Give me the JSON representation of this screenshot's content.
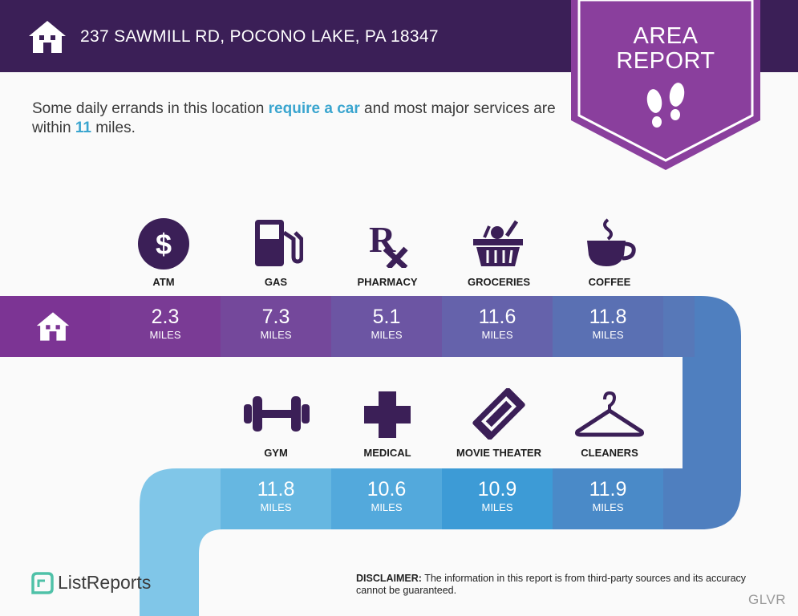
{
  "header": {
    "address": "237 SAWMILL RD, POCONO LAKE, PA 18347",
    "badge_line1": "AREA",
    "badge_line2": "REPORT"
  },
  "intro": {
    "part1": "Some daily errands in this location ",
    "highlight1": "require a car",
    "part2": " and most major services are within ",
    "highlight2": "11",
    "part3": " miles."
  },
  "row1": [
    {
      "label": "ATM",
      "value": "2.3",
      "unit": "MILES",
      "icon": "dollar-icon",
      "color": "#7a3b95"
    },
    {
      "label": "GAS",
      "value": "7.3",
      "unit": "MILES",
      "icon": "gas-pump-icon",
      "color": "#74489b"
    },
    {
      "label": "PHARMACY",
      "value": "5.1",
      "unit": "MILES",
      "icon": "rx-icon",
      "color": "#6c55a3"
    },
    {
      "label": "GROCERIES",
      "value": "11.6",
      "unit": "MILES",
      "icon": "grocery-basket-icon",
      "color": "#6562ab"
    },
    {
      "label": "COFFEE",
      "value": "11.8",
      "unit": "MILES",
      "icon": "coffee-cup-icon",
      "color": "#5a70b3"
    }
  ],
  "row2": [
    {
      "label": "GYM",
      "value": "11.8",
      "unit": "MILES",
      "icon": "dumbbell-icon",
      "color": "#66b7e1"
    },
    {
      "label": "MEDICAL",
      "value": "10.6",
      "unit": "MILES",
      "icon": "medical-cross-icon",
      "color": "#53a9dc"
    },
    {
      "label": "MOVIE THEATER",
      "value": "10.9",
      "unit": "MILES",
      "icon": "ticket-icon",
      "color": "#3d9bd6"
    },
    {
      "label": "CLEANERS",
      "value": "11.9",
      "unit": "MILES",
      "icon": "hanger-icon",
      "color": "#4a8ac8"
    }
  ],
  "footer": {
    "brand": "ListReports",
    "disclaimer_label": "DISCLAIMER:",
    "disclaimer_text": " The information in this report is from third-party sources and its accuracy cannot be guaranteed.",
    "watermark": "GLVR"
  },
  "colors": {
    "header": "#3b1f57",
    "badge": "#8a3f9d",
    "icon": "#3b1f57",
    "highlight": "#3aa5cf"
  }
}
